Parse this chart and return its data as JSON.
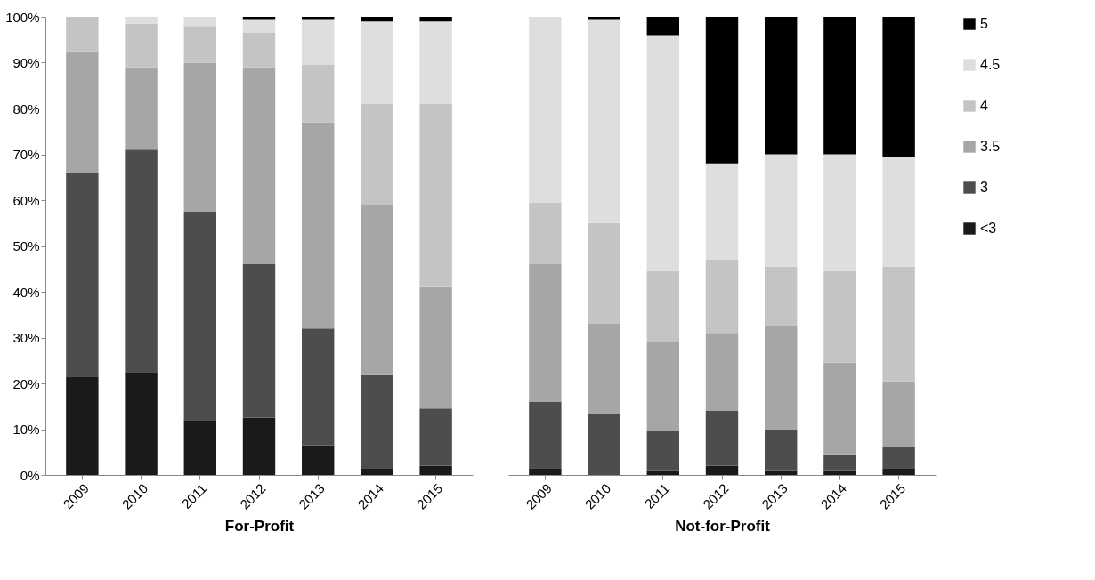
{
  "chart_data": [
    {
      "type": "bar",
      "stacked": true,
      "xlabel": "For-Profit",
      "categories": [
        "2009",
        "2010",
        "2011",
        "2012",
        "2013",
        "2014",
        "2015"
      ],
      "ylim": [
        0,
        100
      ],
      "yticks": [
        {
          "value": 0,
          "label": "0%"
        },
        {
          "value": 10,
          "label": "10%"
        },
        {
          "value": 20,
          "label": "20%"
        },
        {
          "value": 30,
          "label": "30%"
        },
        {
          "value": 40,
          "label": "40%"
        },
        {
          "value": 50,
          "label": "50%"
        },
        {
          "value": 60,
          "label": "60%"
        },
        {
          "value": 70,
          "label": "70%"
        },
        {
          "value": 80,
          "label": "80%"
        },
        {
          "value": 90,
          "label": "90%"
        },
        {
          "value": 100,
          "label": "100%"
        }
      ],
      "grid": false,
      "legend": "right",
      "series": [
        {
          "name": "<3",
          "color": "#1a1a1a",
          "values": [
            21.5,
            22.5,
            12,
            12.5,
            6.5,
            1.5,
            2
          ]
        },
        {
          "name": "3",
          "color": "#4d4d4d",
          "values": [
            44.5,
            48.5,
            45.5,
            33.5,
            25.5,
            20.5,
            12.5
          ]
        },
        {
          "name": "3.5",
          "color": "#a6a6a6",
          "values": [
            26.5,
            18,
            32.5,
            43,
            45,
            37,
            26.5
          ]
        },
        {
          "name": "4",
          "color": "#c4c4c4",
          "values": [
            7.5,
            9.5,
            8,
            7.5,
            12.5,
            22,
            40
          ]
        },
        {
          "name": "4.5",
          "color": "#dedede",
          "values": [
            0,
            1.5,
            2,
            3,
            10,
            18,
            18
          ]
        },
        {
          "name": "5",
          "color": "#000000",
          "values": [
            0,
            0,
            0,
            0.5,
            0.5,
            1,
            1
          ]
        }
      ]
    },
    {
      "type": "bar",
      "stacked": true,
      "xlabel": "Not-for-Profit",
      "categories": [
        "2009",
        "2010",
        "2011",
        "2012",
        "2013",
        "2014",
        "2015"
      ],
      "ylim": [
        0,
        100
      ],
      "tick_labels": "x",
      "grid": false,
      "legend": "right",
      "series": [
        {
          "name": "<3",
          "color": "#1a1a1a",
          "values": [
            1.5,
            0,
            1,
            2,
            1,
            1,
            1.5
          ]
        },
        {
          "name": "3",
          "color": "#4d4d4d",
          "values": [
            14.5,
            13.5,
            8.5,
            12,
            9,
            3.5,
            4.5
          ]
        },
        {
          "name": "3.5",
          "color": "#a6a6a6",
          "values": [
            30,
            19.5,
            19.5,
            17,
            22.5,
            20,
            14.5
          ]
        },
        {
          "name": "4",
          "color": "#c4c4c4",
          "values": [
            13.5,
            22,
            15.5,
            16,
            13,
            20,
            25
          ]
        },
        {
          "name": "4.5",
          "color": "#dedede",
          "values": [
            40.5,
            44.5,
            51.5,
            21,
            24.5,
            25.5,
            24
          ]
        },
        {
          "name": "5",
          "color": "#000000",
          "values": [
            0,
            0.5,
            4,
            32,
            30,
            30,
            30.5
          ]
        }
      ]
    }
  ]
}
